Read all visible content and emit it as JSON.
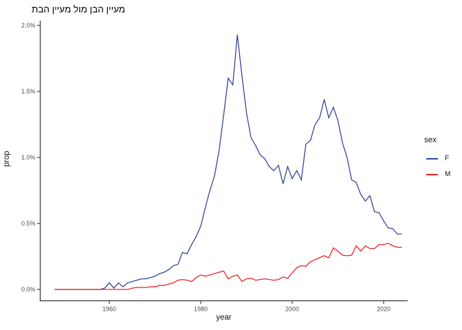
{
  "legend": {
    "title": "sex"
  },
  "chart_data": {
    "type": "line",
    "title": "מעיין הבן מול מעיין הבת",
    "xlabel": "year",
    "ylabel": "prop",
    "unit": "percent",
    "grid": false,
    "legend_position": "right",
    "xlim": [
      1948,
      2024
    ],
    "ylim": [
      0,
      2.0
    ],
    "x_ticks": {
      "values": [
        1960,
        1980,
        2000,
        2020
      ],
      "labels": [
        "1960",
        "1980",
        "2000",
        "2020"
      ]
    },
    "y_ticks": {
      "values": [
        0,
        0.5,
        1.0,
        1.5,
        2.0
      ],
      "labels": [
        "0.0%",
        "0.5%",
        "1.0%",
        "1.5%",
        "2.0%"
      ]
    },
    "x": [
      1948,
      1949,
      1950,
      1951,
      1952,
      1953,
      1954,
      1955,
      1956,
      1957,
      1958,
      1959,
      1960,
      1961,
      1962,
      1963,
      1964,
      1965,
      1966,
      1967,
      1968,
      1969,
      1970,
      1971,
      1972,
      1973,
      1974,
      1975,
      1976,
      1977,
      1978,
      1979,
      1980,
      1981,
      1982,
      1983,
      1984,
      1985,
      1986,
      1987,
      1988,
      1989,
      1990,
      1991,
      1992,
      1993,
      1994,
      1995,
      1996,
      1997,
      1998,
      1999,
      2000,
      2001,
      2002,
      2003,
      2004,
      2005,
      2006,
      2007,
      2008,
      2009,
      2010,
      2011,
      2012,
      2013,
      2014,
      2015,
      2016,
      2017,
      2018,
      2019,
      2020,
      2021,
      2022,
      2023,
      2024
    ],
    "series": [
      {
        "name": "F",
        "color": "#36429B",
        "values": [
          0,
          0,
          0,
          0,
          0,
          0,
          0,
          0,
          0,
          0,
          0,
          0.01,
          0.05,
          0.01,
          0.05,
          0.02,
          0.05,
          0.06,
          0.07,
          0.08,
          0.08,
          0.09,
          0.1,
          0.12,
          0.13,
          0.15,
          0.18,
          0.19,
          0.28,
          0.27,
          0.34,
          0.4,
          0.48,
          0.62,
          0.75,
          0.86,
          1.05,
          1.32,
          1.6,
          1.55,
          1.93,
          1.62,
          1.34,
          1.15,
          1.09,
          1.02,
          0.99,
          0.93,
          0.9,
          0.94,
          0.8,
          0.93,
          0.84,
          0.9,
          0.83,
          1.1,
          1.13,
          1.25,
          1.3,
          1.44,
          1.3,
          1.38,
          1.28,
          1.11,
          1.0,
          0.83,
          0.81,
          0.72,
          0.67,
          0.71,
          0.59,
          0.58,
          0.52,
          0.465,
          0.46,
          0.42,
          0.42
        ]
      },
      {
        "name": "M",
        "color": "#EC2127",
        "values": [
          0,
          0,
          0,
          0,
          0,
          0,
          0,
          0,
          0,
          0,
          0,
          0,
          0,
          0,
          0,
          0,
          0,
          0.01,
          0.015,
          0.015,
          0.015,
          0.02,
          0.02,
          0.03,
          0.03,
          0.04,
          0.05,
          0.07,
          0.075,
          0.07,
          0.06,
          0.09,
          0.11,
          0.1,
          0.11,
          0.12,
          0.13,
          0.14,
          0.08,
          0.1,
          0.11,
          0.06,
          0.08,
          0.085,
          0.07,
          0.075,
          0.08,
          0.075,
          0.07,
          0.075,
          0.095,
          0.085,
          0.125,
          0.165,
          0.18,
          0.175,
          0.21,
          0.225,
          0.24,
          0.255,
          0.24,
          0.315,
          0.29,
          0.26,
          0.255,
          0.26,
          0.33,
          0.29,
          0.33,
          0.31,
          0.31,
          0.34,
          0.34,
          0.35,
          0.33,
          0.32,
          0.32
        ]
      }
    ]
  }
}
